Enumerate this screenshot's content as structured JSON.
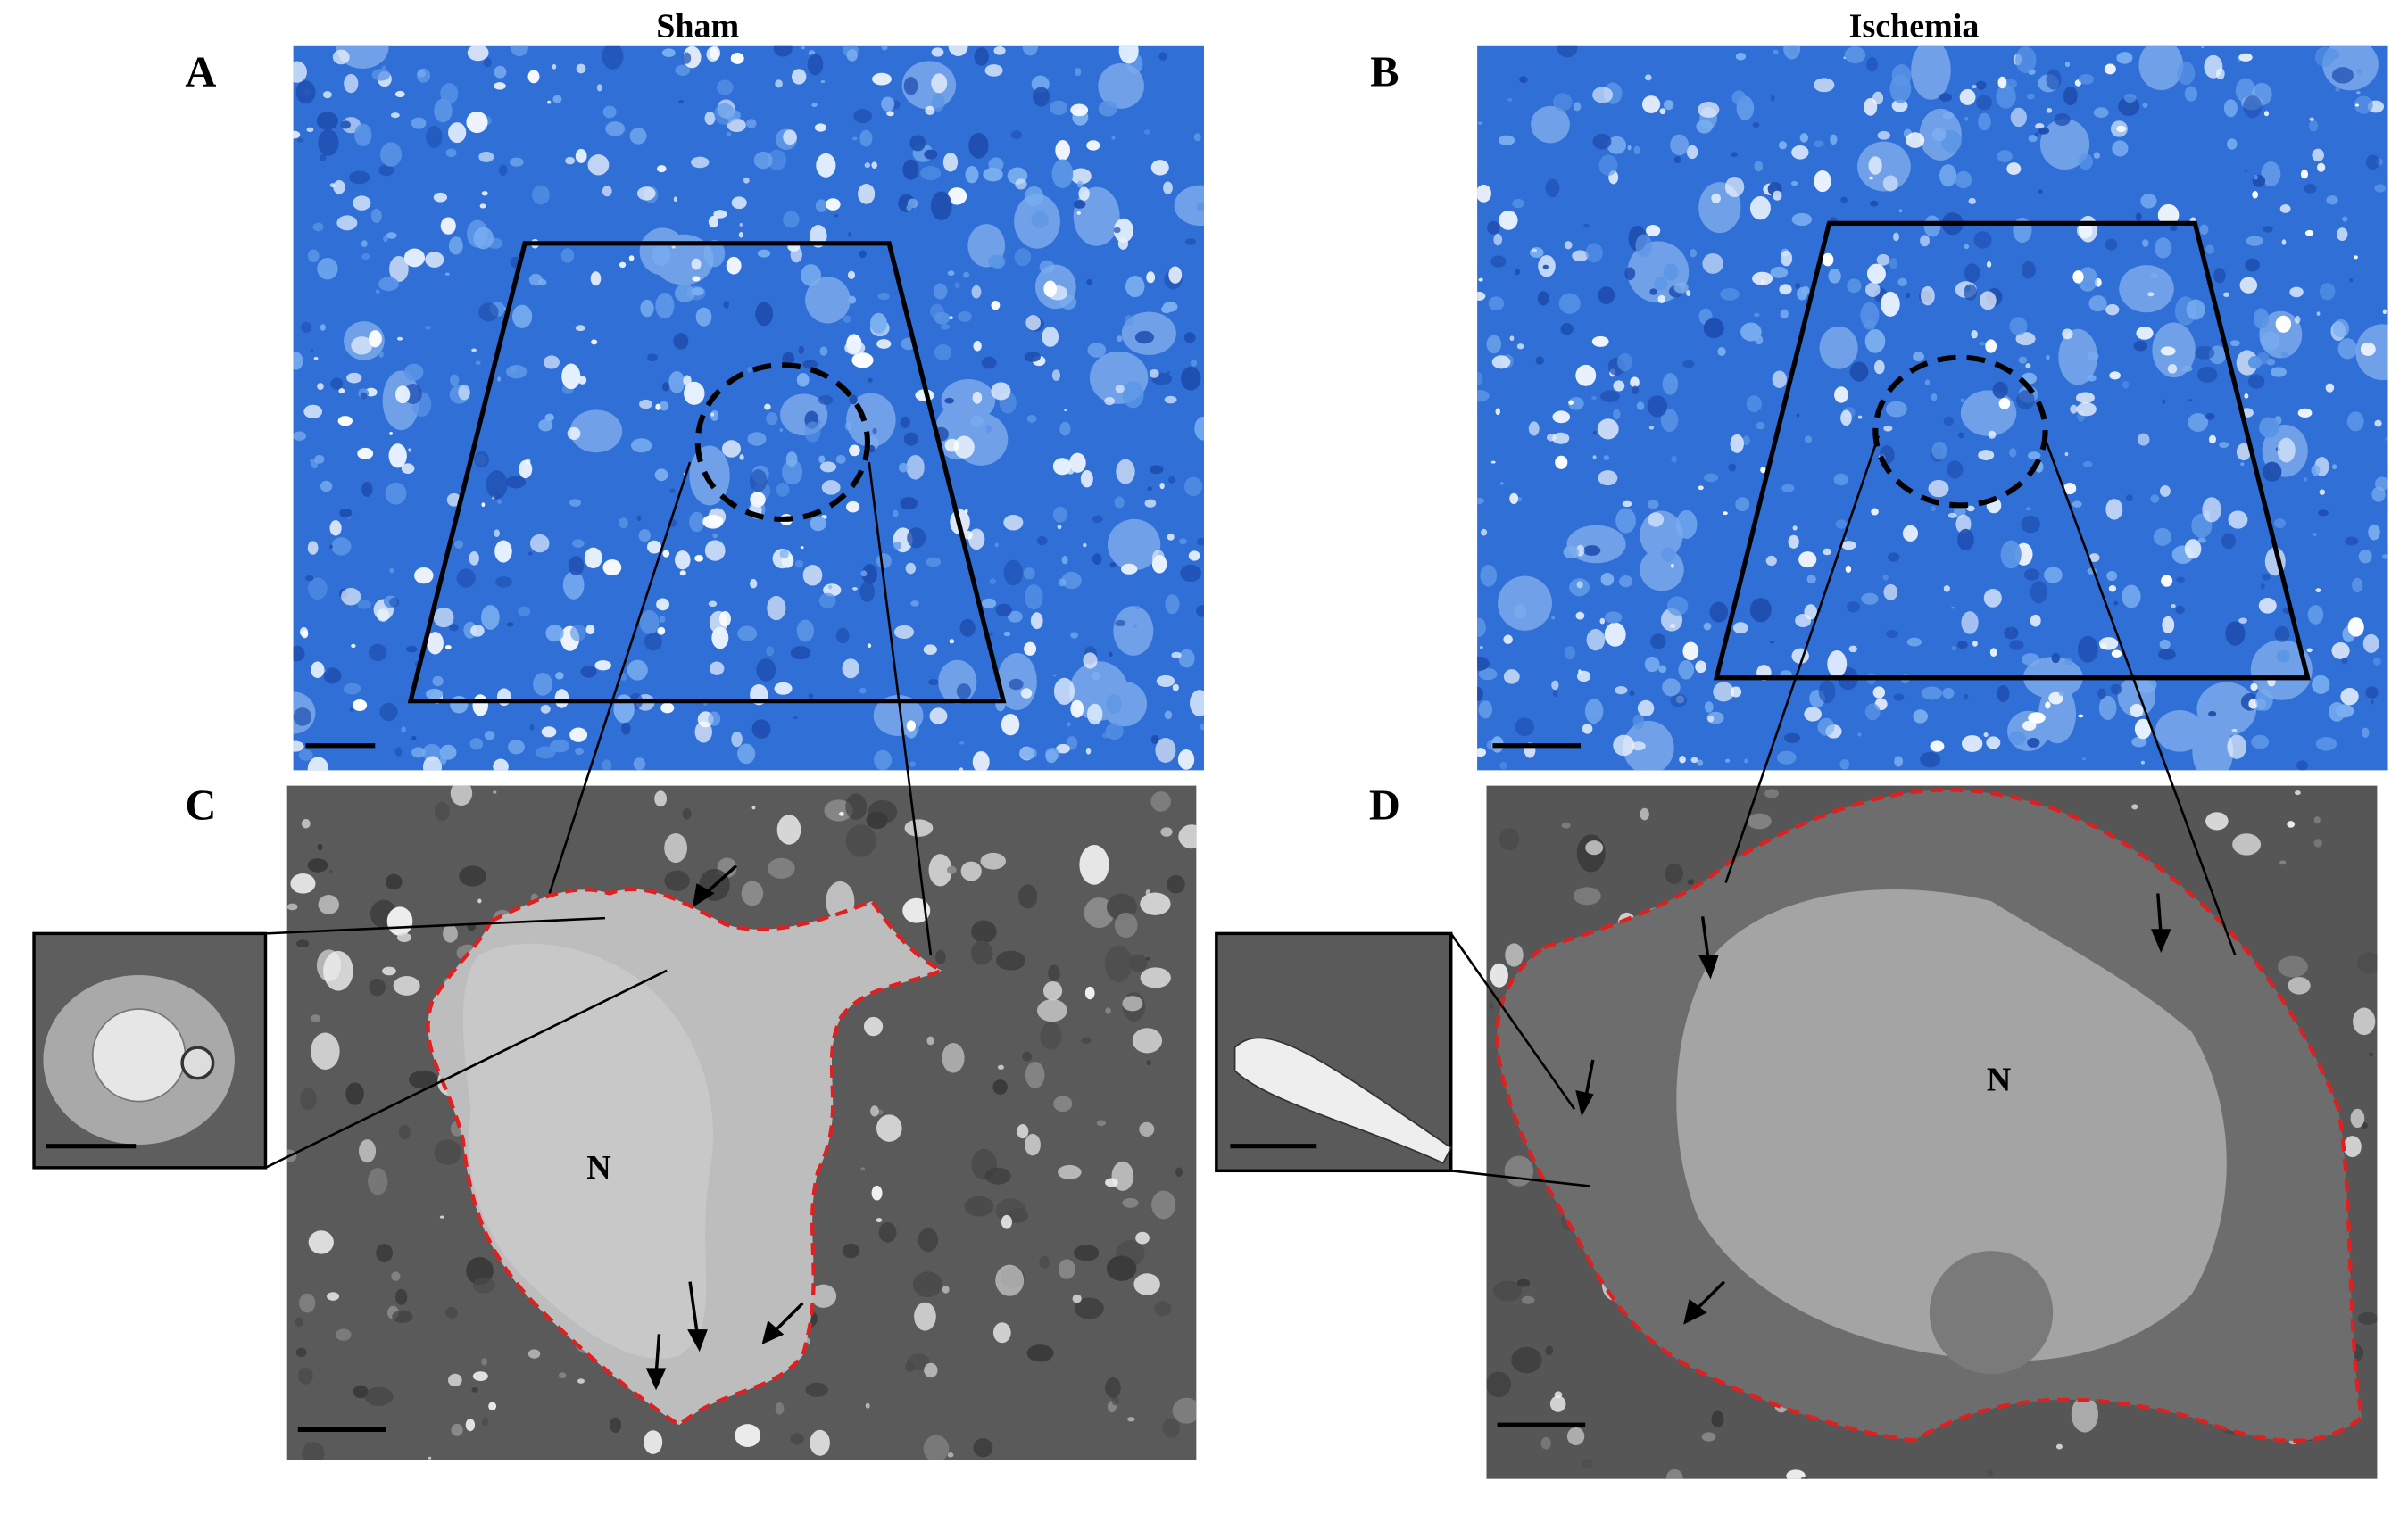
{
  "columns": [
    "Sham",
    "Ischemia"
  ],
  "panels": [
    {
      "label": "A"
    },
    {
      "label": "B"
    },
    {
      "label": "C",
      "nucleus_label": "N"
    },
    {
      "label": "D",
      "nucleus_label": "N"
    }
  ]
}
